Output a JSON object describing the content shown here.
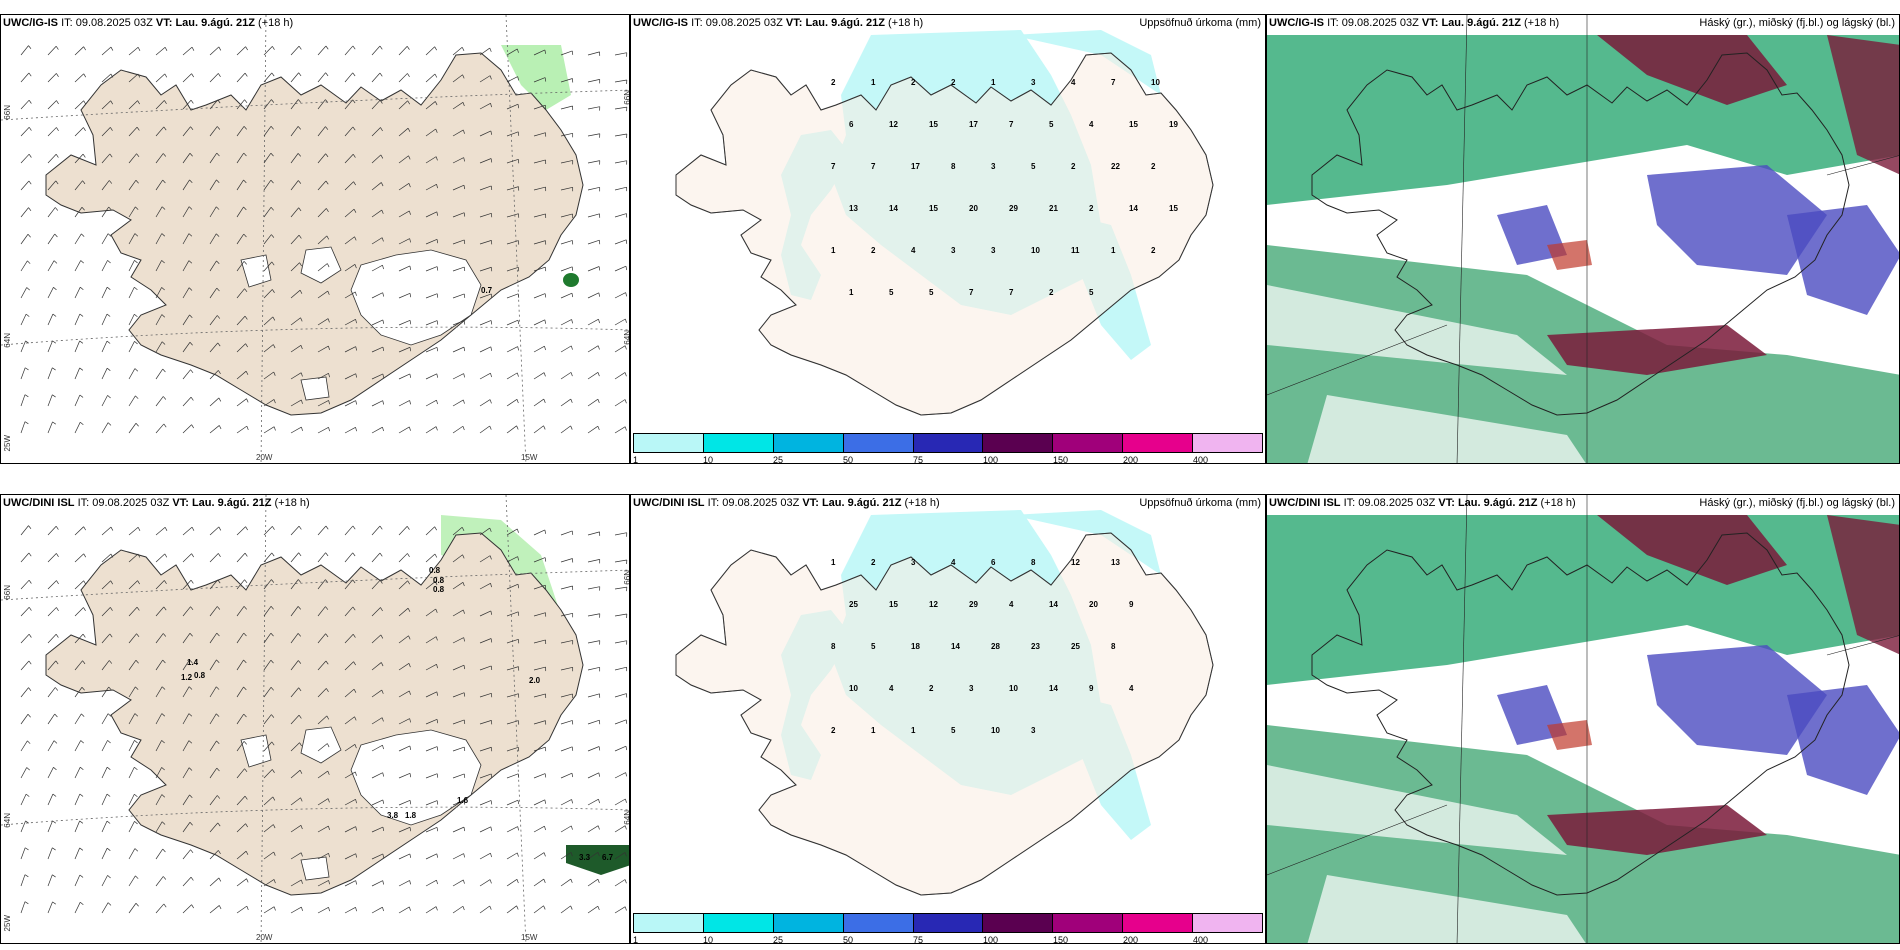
{
  "panels": [
    {
      "id": "p1",
      "model": "UWC/IG-IS",
      "it_label": "IT:",
      "it": "09.08.2025 03Z",
      "vt_label": "VT:",
      "vt": "Lau. 9.ágú. 21Z",
      "lead": "(+18 h)",
      "right_title": "",
      "type": "wind"
    },
    {
      "id": "p2",
      "model": "UWC/IG-IS",
      "it_label": "IT:",
      "it": "09.08.2025 03Z",
      "vt_label": "VT:",
      "vt": "Lau. 9.ágú. 21Z",
      "lead": "(+18 h)",
      "right_title": "Uppsöfnuð úrkoma (mm)",
      "type": "precip"
    },
    {
      "id": "p3",
      "model": "UWC/IG-IS",
      "it_label": "IT:",
      "it": "09.08.2025 03Z",
      "vt_label": "VT:",
      "vt": "Lau. 9.ágú. 21Z",
      "lead": "(+18 h)",
      "right_title": "Háský (gr.), miðský (fj.bl.) og lágský (bl.)",
      "type": "cloud"
    },
    {
      "id": "p4",
      "model": "UWC/DINI ISL",
      "it_label": "IT:",
      "it": "09.08.2025 03Z",
      "vt_label": "VT:",
      "vt": "Lau. 9.ágú. 21Z",
      "lead": "(+18 h)",
      "right_title": "",
      "type": "wind"
    },
    {
      "id": "p5",
      "model": "UWC/DINI ISL",
      "it_label": "IT:",
      "it": "09.08.2025 03Z",
      "vt_label": "VT:",
      "vt": "Lau. 9.ágú. 21Z",
      "lead": "(+18 h)",
      "right_title": "Uppsöfnuð úrkoma (mm)",
      "type": "precip"
    },
    {
      "id": "p6",
      "model": "UWC/DINI ISL",
      "it_label": "IT:",
      "it": "09.08.2025 03Z",
      "vt_label": "VT:",
      "vt": "Lau. 9.ágú. 21Z",
      "lead": "(+18 h)",
      "right_title": "Háský (gr.), miðský (fj.bl.) og lágský (bl.)",
      "type": "cloud"
    }
  ],
  "grid_labels": {
    "lat66": "66N",
    "lat64": "64N",
    "lon25": "25W",
    "lon20": "20W",
    "lon15": "15W"
  },
  "colorbar": {
    "labels": [
      "1",
      "10",
      "25",
      "50",
      "75",
      "100",
      "150",
      "200",
      "400"
    ],
    "colors": [
      "#b9f7f7",
      "#00e6e6",
      "#00b4e0",
      "#3c6ee6",
      "#2828b4",
      "#5a0050",
      "#a0007a",
      "#e6008c",
      "#f0b4f0"
    ]
  },
  "wind_values_top": [
    "0.7"
  ],
  "wind_values_bottom": [
    "0.8",
    "0.8",
    "0.8",
    "1.4",
    "1.2",
    "0.8",
    "2.0",
    "1.6",
    "3.8",
    "1.8",
    "3.3",
    "6.7"
  ],
  "precip_top": [
    "2",
    "1",
    "2",
    "2",
    "1",
    "3",
    "4",
    "7",
    "10",
    "6",
    "12",
    "15",
    "17",
    "7",
    "5",
    "4",
    "15",
    "19",
    "7",
    "7",
    "17",
    "8",
    "3",
    "5",
    "2",
    "22",
    "2",
    "13",
    "14",
    "15",
    "20",
    "29",
    "21",
    "2",
    "14",
    "15",
    "1",
    "2",
    "4",
    "3",
    "3",
    "10",
    "11",
    "1",
    "2",
    "1",
    "5",
    "5",
    "7",
    "7",
    "2",
    "5"
  ],
  "precip_bottom": [
    "1",
    "2",
    "3",
    "4",
    "6",
    "8",
    "12",
    "13",
    "25",
    "15",
    "12",
    "29",
    "4",
    "14",
    "20",
    "9",
    "8",
    "5",
    "18",
    "14",
    "28",
    "23",
    "25",
    "8",
    "10",
    "4",
    "2",
    "3",
    "10",
    "14",
    "9",
    "4",
    "2",
    "1",
    "1",
    "5",
    "10",
    "3"
  ],
  "colors": {
    "land": "#ede0d0",
    "precip_land": "#fbeee3",
    "precip_cyan": "#c4f8f8",
    "wind_green": "#b9f0b4"
  }
}
